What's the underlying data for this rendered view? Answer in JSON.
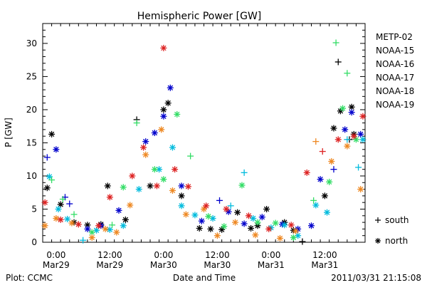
{
  "chart_data": {
    "type": "scatter",
    "title": "Hemispheric Power [GW]",
    "xlabel": "Date and Time",
    "ylabel": "P [GW]",
    "footer_left": "Plot: CCMC",
    "footer_right": "2011/03/31 21:15:08",
    "xlim": [
      "2011-03-28 21:00",
      "2011-03-31 21:00"
    ],
    "ylim": [
      0,
      33
    ],
    "y_ticks": [
      0,
      5,
      10,
      15,
      20,
      25,
      30
    ],
    "x_ticks": [
      {
        "time": "2011-03-29 00:00",
        "line1": "0:00",
        "line2": "Mar29"
      },
      {
        "time": "2011-03-29 12:00",
        "line1": "12:00",
        "line2": "Mar29"
      },
      {
        "time": "2011-03-30 00:00",
        "line1": "0:00",
        "line2": "Mar30"
      },
      {
        "time": "2011-03-30 12:00",
        "line1": "12:00",
        "line2": "Mar30"
      },
      {
        "time": "2011-03-31 00:00",
        "line1": "0:00",
        "line2": "Mar31"
      },
      {
        "time": "2011-03-31 12:00",
        "line1": "12:00",
        "line2": "Mar31"
      }
    ],
    "grid": false,
    "legend_position": "right",
    "marker_legend": [
      {
        "symbol": "+",
        "label": "south"
      },
      {
        "symbol": "*",
        "label": "north"
      }
    ],
    "series": [
      {
        "name": "METP-02",
        "color": "#000000",
        "points": [
          [
            "2011-03-28 22:00",
            8.2,
            "north"
          ],
          [
            "2011-03-28 23:00",
            16.3,
            "north"
          ],
          [
            "2011-03-29 01:00",
            5.7,
            "north"
          ],
          [
            "2011-03-29 04:00",
            3.0,
            "north"
          ],
          [
            "2011-03-29 07:00",
            2.6,
            "north"
          ],
          [
            "2011-03-29 10:00",
            2.7,
            "north"
          ],
          [
            "2011-03-29 11:30",
            8.5,
            "north"
          ],
          [
            "2011-03-29 15:30",
            3.4,
            "north"
          ],
          [
            "2011-03-29 18:00",
            18.5,
            "south"
          ],
          [
            "2011-03-29 21:00",
            8.5,
            "north"
          ],
          [
            "2011-03-30 00:00",
            20.0,
            "north"
          ],
          [
            "2011-03-30 01:00",
            21.0,
            "north"
          ],
          [
            "2011-03-30 04:00",
            7.0,
            "north"
          ],
          [
            "2011-03-30 08:00",
            2.1,
            "north"
          ],
          [
            "2011-03-30 10:30",
            2.0,
            "north"
          ],
          [
            "2011-03-30 13:00",
            1.9,
            "north"
          ],
          [
            "2011-03-30 16:30",
            4.5,
            "north"
          ],
          [
            "2011-03-30 19:30",
            2.1,
            "north"
          ],
          [
            "2011-03-30 21:00",
            2.5,
            "north"
          ],
          [
            "2011-03-30 23:00",
            5.0,
            "north"
          ],
          [
            "2011-03-31 03:00",
            3.0,
            "north"
          ],
          [
            "2011-03-31 05:00",
            1.8,
            "north"
          ],
          [
            "2011-03-31 07:00",
            0.1,
            "south"
          ],
          [
            "2011-03-31 12:00",
            7.0,
            "north"
          ],
          [
            "2011-03-31 14:00",
            17.2,
            "north"
          ],
          [
            "2011-03-31 15:00",
            27.2,
            "south"
          ],
          [
            "2011-03-31 15:30",
            19.8,
            "north"
          ],
          [
            "2011-03-31 17:30",
            15.5,
            "south"
          ],
          [
            "2011-03-31 18:00",
            20.4,
            "north"
          ],
          [
            "2011-03-31 18:30",
            16.3,
            "north"
          ]
        ]
      },
      {
        "name": "NOAA-15",
        "color": "#0000cc",
        "points": [
          [
            "2011-03-28 22:00",
            12.8,
            "south"
          ],
          [
            "2011-03-29 00:00",
            14.0,
            "north"
          ],
          [
            "2011-03-29 02:00",
            6.8,
            "south"
          ],
          [
            "2011-03-29 03:00",
            5.8,
            "south"
          ],
          [
            "2011-03-29 07:00",
            2.0,
            "north"
          ],
          [
            "2011-03-29 10:00",
            2.5,
            "north"
          ],
          [
            "2011-03-29 14:00",
            4.8,
            "north"
          ],
          [
            "2011-03-29 20:00",
            15.2,
            "north"
          ],
          [
            "2011-03-29 22:00",
            16.5,
            "north"
          ],
          [
            "2011-03-30 00:00",
            19.0,
            "north"
          ],
          [
            "2011-03-30 01:30",
            23.3,
            "north"
          ],
          [
            "2011-03-30 04:00",
            8.5,
            "north"
          ],
          [
            "2011-03-30 08:30",
            3.2,
            "north"
          ],
          [
            "2011-03-30 12:30",
            6.3,
            "south"
          ],
          [
            "2011-03-30 14:30",
            4.6,
            "north"
          ],
          [
            "2011-03-30 18:00",
            2.8,
            "north"
          ],
          [
            "2011-03-30 22:00",
            3.8,
            "north"
          ],
          [
            "2011-03-31 02:30",
            2.7,
            "north"
          ],
          [
            "2011-03-31 06:00",
            2.0,
            "north"
          ],
          [
            "2011-03-31 09:00",
            2.5,
            "north"
          ],
          [
            "2011-03-31 11:00",
            9.5,
            "north"
          ],
          [
            "2011-03-31 14:00",
            11.0,
            "south"
          ],
          [
            "2011-03-31 16:30",
            17.0,
            "north"
          ],
          [
            "2011-03-31 18:00",
            19.6,
            "north"
          ],
          [
            "2011-03-31 20:00",
            16.3,
            "north"
          ]
        ]
      },
      {
        "name": "NOAA-16",
        "color": "#00bbdd",
        "points": [
          [
            "2011-03-28 22:30",
            9.9,
            "north"
          ],
          [
            "2011-03-29 00:30",
            5.0,
            "north"
          ],
          [
            "2011-03-29 02:30",
            3.5,
            "north"
          ],
          [
            "2011-03-29 06:00",
            0.3,
            "south"
          ],
          [
            "2011-03-29 09:00",
            1.8,
            "north"
          ],
          [
            "2011-03-29 12:00",
            1.9,
            "north"
          ],
          [
            "2011-03-29 15:00",
            2.5,
            "north"
          ],
          [
            "2011-03-29 18:30",
            8.0,
            "north"
          ],
          [
            "2011-03-29 23:00",
            11.0,
            "north"
          ],
          [
            "2011-03-30 02:00",
            14.3,
            "north"
          ],
          [
            "2011-03-30 04:00",
            5.5,
            "north"
          ],
          [
            "2011-03-30 07:00",
            4.1,
            "north"
          ],
          [
            "2011-03-30 11:00",
            3.6,
            "north"
          ],
          [
            "2011-03-30 15:00",
            5.5,
            "south"
          ],
          [
            "2011-03-30 18:00",
            10.5,
            "south"
          ],
          [
            "2011-03-30 20:00",
            3.6,
            "north"
          ],
          [
            "2011-03-31 00:00",
            2.2,
            "north"
          ],
          [
            "2011-03-31 03:00",
            2.6,
            "north"
          ],
          [
            "2011-03-31 06:00",
            1.0,
            "north"
          ],
          [
            "2011-03-31 10:00",
            5.6,
            "north"
          ],
          [
            "2011-03-31 12:30",
            4.5,
            "north"
          ],
          [
            "2011-03-31 17:00",
            15.5,
            "south"
          ],
          [
            "2011-03-31 19:30",
            11.3,
            "south"
          ],
          [
            "2011-03-31 20:30",
            15.5,
            "north"
          ]
        ]
      },
      {
        "name": "NOAA-17",
        "color": "#33dd66",
        "points": [
          [
            "2011-03-28 23:00",
            9.4,
            "south"
          ],
          [
            "2011-03-29 01:30",
            6.5,
            "south"
          ],
          [
            "2011-03-29 04:00",
            4.2,
            "south"
          ],
          [
            "2011-03-29 08:00",
            1.5,
            "north"
          ],
          [
            "2011-03-29 12:30",
            2.6,
            "south"
          ],
          [
            "2011-03-29 15:00",
            8.3,
            "north"
          ],
          [
            "2011-03-29 18:00",
            18.0,
            "south"
          ],
          [
            "2011-03-29 22:00",
            11.0,
            "north"
          ],
          [
            "2011-03-30 00:00",
            9.5,
            "north"
          ],
          [
            "2011-03-30 03:00",
            19.3,
            "north"
          ],
          [
            "2011-03-30 06:00",
            13.0,
            "south"
          ],
          [
            "2011-03-30 10:00",
            3.9,
            "north"
          ],
          [
            "2011-03-30 13:30",
            2.4,
            "north"
          ],
          [
            "2011-03-30 17:30",
            8.6,
            "north"
          ],
          [
            "2011-03-30 21:00",
            3.0,
            "north"
          ],
          [
            "2011-03-31 01:00",
            2.9,
            "north"
          ],
          [
            "2011-03-31 05:00",
            0.7,
            "north"
          ],
          [
            "2011-03-31 09:30",
            6.3,
            "south"
          ],
          [
            "2011-03-31 13:00",
            9.1,
            "north"
          ],
          [
            "2011-03-31 14:30",
            30.1,
            "south"
          ],
          [
            "2011-03-31 16:00",
            20.2,
            "north"
          ],
          [
            "2011-03-31 17:00",
            25.5,
            "south"
          ],
          [
            "2011-03-31 19:00",
            15.5,
            "north"
          ]
        ]
      },
      {
        "name": "NOAA-18",
        "color": "#ee8822",
        "points": [
          [
            "2011-03-28 21:30",
            2.5,
            "north"
          ],
          [
            "2011-03-29 00:00",
            3.6,
            "north"
          ],
          [
            "2011-03-29 03:30",
            2.9,
            "north"
          ],
          [
            "2011-03-29 08:00",
            0.7,
            "north"
          ],
          [
            "2011-03-29 11:00",
            2.0,
            "north"
          ],
          [
            "2011-03-29 13:30",
            1.5,
            "north"
          ],
          [
            "2011-03-29 16:30",
            5.6,
            "north"
          ],
          [
            "2011-03-29 20:00",
            13.2,
            "north"
          ],
          [
            "2011-03-29 23:30",
            17.0,
            "north"
          ],
          [
            "2011-03-30 02:00",
            7.8,
            "north"
          ],
          [
            "2011-03-30 05:00",
            4.2,
            "north"
          ],
          [
            "2011-03-30 09:00",
            5.0,
            "north"
          ],
          [
            "2011-03-30 12:00",
            1.0,
            "north"
          ],
          [
            "2011-03-30 16:00",
            3.0,
            "north"
          ],
          [
            "2011-03-30 20:30",
            1.1,
            "north"
          ],
          [
            "2011-03-31 02:00",
            0.6,
            "north"
          ],
          [
            "2011-03-31 05:30",
            1.7,
            "north"
          ],
          [
            "2011-03-31 10:00",
            15.2,
            "south"
          ],
          [
            "2011-03-31 13:30",
            12.2,
            "north"
          ],
          [
            "2011-03-31 17:00",
            14.5,
            "north"
          ],
          [
            "2011-03-31 20:00",
            8.0,
            "north"
          ]
        ]
      },
      {
        "name": "NOAA-19",
        "color": "#dd2222",
        "points": [
          [
            "2011-03-28 21:30",
            6.0,
            "north"
          ],
          [
            "2011-03-29 01:00",
            3.4,
            "north"
          ],
          [
            "2011-03-29 05:00",
            2.7,
            "north"
          ],
          [
            "2011-03-29 09:30",
            2.5,
            "north"
          ],
          [
            "2011-03-29 12:00",
            6.8,
            "north"
          ],
          [
            "2011-03-29 17:00",
            10.0,
            "north"
          ],
          [
            "2011-03-29 19:30",
            14.3,
            "north"
          ],
          [
            "2011-03-29 22:30",
            8.5,
            "north"
          ],
          [
            "2011-03-30 00:00",
            29.3,
            "north"
          ],
          [
            "2011-03-30 02:30",
            11.0,
            "north"
          ],
          [
            "2011-03-30 05:30",
            8.4,
            "north"
          ],
          [
            "2011-03-30 09:30",
            5.5,
            "north"
          ],
          [
            "2011-03-30 14:00",
            5.0,
            "north"
          ],
          [
            "2011-03-30 19:00",
            4.0,
            "north"
          ],
          [
            "2011-03-30 23:30",
            2.0,
            "north"
          ],
          [
            "2011-03-31 04:30",
            2.6,
            "north"
          ],
          [
            "2011-03-31 08:00",
            10.5,
            "north"
          ],
          [
            "2011-03-31 11:30",
            13.7,
            "south"
          ],
          [
            "2011-03-31 15:00",
            15.5,
            "north"
          ],
          [
            "2011-03-31 18:30",
            16.0,
            "north"
          ],
          [
            "2011-03-31 20:30",
            19.0,
            "north"
          ]
        ]
      }
    ]
  }
}
